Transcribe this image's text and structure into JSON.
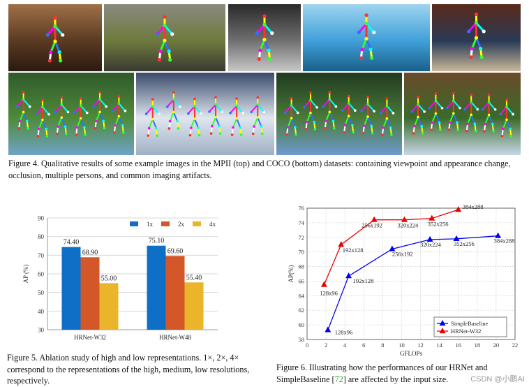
{
  "figure4": {
    "caption": "Figure 4. Qualitative results of some example images in the MPII (top) and COCO (bottom) datasets: containing viewpoint and appearance change, occlusion, multiple persons, and common imaging artifacts.",
    "photos_top": [
      {
        "scene": "piano-room",
        "palette": [
          "#5a3a22",
          "#2b1a10",
          "#a07048"
        ]
      },
      {
        "scene": "yoga-outdoor",
        "palette": [
          "#6e7a3c",
          "#3a3a32",
          "#8a8a80"
        ]
      },
      {
        "scene": "gym",
        "palette": [
          "#707070",
          "#c8c8c8",
          "#2a2a2a"
        ]
      },
      {
        "scene": "water-bubble",
        "palette": [
          "#3fa0d8",
          "#1a5f8a",
          "#9fd4f0"
        ]
      },
      {
        "scene": "skateboard",
        "palette": [
          "#2a3a55",
          "#c9b89a",
          "#5a2a1a"
        ]
      }
    ],
    "photos_bottom": [
      {
        "scene": "team-photo-field",
        "palette": [
          "#4f8a3a",
          "#6fa3c8",
          "#2f5a2a"
        ]
      },
      {
        "scene": "ski-race",
        "palette": [
          "#dfe6ee",
          "#9fb0c4",
          "#3a4a6a"
        ]
      },
      {
        "scene": "team-photo-grass",
        "palette": [
          "#4a7a3a",
          "#6e9ad0",
          "#203a20"
        ]
      },
      {
        "scene": "volleyball",
        "palette": [
          "#3a6a2a",
          "#c8d8e8",
          "#6a4a2a"
        ]
      }
    ]
  },
  "figure5": {
    "caption": "Figure 5. Ablation study of high and low representations. 1×, 2×, 4× correspond to the representations of the high, medium, low resolutions, respectively."
  },
  "figure6": {
    "caption_pre": "Figure 6. Illustrating how the performances of our HRNet and SimpleBaseline [",
    "caption_ref": "72",
    "caption_post": "] are affected by the input size."
  },
  "watermark": "CSDN @小鹏AI",
  "chart_data": [
    {
      "type": "bar",
      "title": "",
      "xlabel": "",
      "ylabel": "AP (%)",
      "ylim": [
        30,
        90
      ],
      "yticks": [
        30,
        40,
        50,
        60,
        70,
        80,
        90
      ],
      "grid": true,
      "legend_position": "top-right",
      "categories": [
        "HRNet-W32",
        "HRNet-W48"
      ],
      "series": [
        {
          "name": "1x",
          "color": "#0f6fc6",
          "values": [
            74.4,
            75.1
          ],
          "labels": [
            "74.40",
            "75.10"
          ]
        },
        {
          "name": "2x",
          "color": "#d4572a",
          "values": [
            68.9,
            69.6
          ],
          "labels": [
            "68.90",
            "69.60"
          ]
        },
        {
          "name": "4x",
          "color": "#eab52a",
          "values": [
            55.0,
            55.4
          ],
          "labels": [
            "55.00",
            "55.40"
          ]
        }
      ]
    },
    {
      "type": "line",
      "title": "",
      "xlabel": "GFLOPs",
      "ylabel": "AP(%)",
      "xlim": [
        0,
        22
      ],
      "ylim": [
        58,
        76
      ],
      "xticks": [
        0,
        2,
        4,
        6,
        8,
        10,
        12,
        14,
        16,
        18,
        20,
        22
      ],
      "yticks": [
        58,
        60,
        62,
        64,
        66,
        68,
        70,
        72,
        74,
        76
      ],
      "grid": true,
      "legend_position": "bottom-right",
      "series": [
        {
          "name": "SimpleBaseline",
          "color": "#0000ee",
          "marker": "triangle",
          "x": [
            2.2,
            4.4,
            9.0,
            13.0,
            15.8,
            20.2
          ],
          "y": [
            59.3,
            66.7,
            70.4,
            71.7,
            71.8,
            72.2
          ],
          "labels": [
            "128x96",
            "192x128",
            "256x192",
            "320x224",
            "352x256",
            "384x288"
          ]
        },
        {
          "name": "HRNet-W32",
          "color": "#ee0000",
          "marker": "triangle",
          "x": [
            1.8,
            3.6,
            7.1,
            10.3,
            13.2,
            16.0
          ],
          "y": [
            65.5,
            71.0,
            74.4,
            74.4,
            74.6,
            75.8
          ],
          "labels": [
            "128x96",
            "192x128",
            "256x192",
            "320x224",
            "352x256",
            "384x288"
          ]
        }
      ]
    }
  ]
}
